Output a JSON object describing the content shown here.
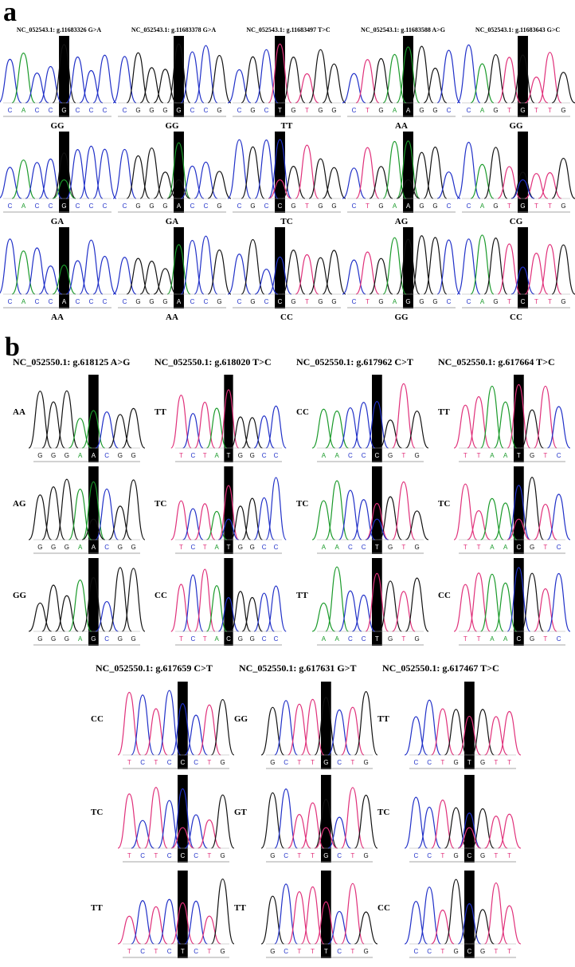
{
  "panels": [
    {
      "label": "a",
      "columns": [
        {
          "title": "NC_052543.1: g.11683326 G>A",
          "rows": [
            {
              "genotype": "GG",
              "before": [
                "C",
                "A",
                "C",
                "C"
              ],
              "site": "G",
              "after": [
                "C",
                "C",
                "C"
              ]
            },
            {
              "genotype": "GA",
              "before": [
                "C",
                "A",
                "C",
                "C"
              ],
              "site": "G",
              "after": [
                "C",
                "C",
                "C"
              ]
            },
            {
              "genotype": "AA",
              "before": [
                "C",
                "A",
                "C",
                "C"
              ],
              "site": "A",
              "after": [
                "C",
                "C",
                "C"
              ]
            }
          ]
        },
        {
          "title": "NC_052543.1: g.11683378 G>A",
          "rows": [
            {
              "genotype": "GG",
              "before": [
                "C",
                "G",
                "G",
                "G"
              ],
              "site": "G",
              "after": [
                "C",
                "C",
                "G"
              ]
            },
            {
              "genotype": "GA",
              "before": [
                "C",
                "G",
                "G",
                "G"
              ],
              "site": "A",
              "after": [
                "C",
                "C",
                "G"
              ]
            },
            {
              "genotype": "AA",
              "before": [
                "C",
                "G",
                "G",
                "G"
              ],
              "site": "A",
              "after": [
                "C",
                "C",
                "G"
              ]
            }
          ]
        },
        {
          "title": "NC_052543.1: g.11683497 T>C",
          "rows": [
            {
              "genotype": "TT",
              "before": [
                "C",
                "G",
                "C"
              ],
              "site": "T",
              "after": [
                "G",
                "T",
                "G",
                "G"
              ]
            },
            {
              "genotype": "TC",
              "before": [
                "C",
                "G",
                "C"
              ],
              "site": "C",
              "after": [
                "G",
                "T",
                "G",
                "G"
              ]
            },
            {
              "genotype": "CC",
              "before": [
                "C",
                "G",
                "C"
              ],
              "site": "C",
              "after": [
                "G",
                "T",
                "G",
                "G"
              ]
            }
          ]
        },
        {
          "title": "NC_052543.1: g.11683588 A>G",
          "rows": [
            {
              "genotype": "AA",
              "before": [
                "C",
                "T",
                "G",
                "A"
              ],
              "site": "A",
              "after": [
                "G",
                "G",
                "C"
              ]
            },
            {
              "genotype": "AG",
              "before": [
                "C",
                "T",
                "G",
                "A"
              ],
              "site": "A",
              "after": [
                "G",
                "G",
                "C"
              ]
            },
            {
              "genotype": "GG",
              "before": [
                "C",
                "T",
                "G",
                "A"
              ],
              "site": "G",
              "after": [
                "G",
                "G",
                "C"
              ]
            }
          ]
        },
        {
          "title": "NC_052543.1: g.11683643 G>C",
          "rows": [
            {
              "genotype": "GG",
              "before": [
                "C",
                "A",
                "G",
                "T"
              ],
              "site": "G",
              "after": [
                "T",
                "T",
                "G"
              ]
            },
            {
              "genotype": "CG",
              "before": [
                "C",
                "A",
                "G",
                "T"
              ],
              "site": "G",
              "after": [
                "T",
                "T",
                "G"
              ]
            },
            {
              "genotype": "CC",
              "before": [
                "C",
                "A",
                "G",
                "T"
              ],
              "site": "C",
              "after": [
                "T",
                "T",
                "G"
              ]
            }
          ]
        }
      ]
    },
    {
      "label": "b",
      "columns": [
        {
          "title": "NC_052550.1: g.618125 A>G",
          "rows": [
            {
              "genotype": "AA",
              "before": [
                "G",
                "G",
                "G",
                "A"
              ],
              "site": "A",
              "after": [
                "C",
                "G",
                "G"
              ]
            },
            {
              "genotype": "AG",
              "before": [
                "G",
                "G",
                "G",
                "A"
              ],
              "site": "A",
              "after": [
                "C",
                "G",
                "G"
              ]
            },
            {
              "genotype": "GG",
              "before": [
                "G",
                "G",
                "G",
                "A"
              ],
              "site": "G",
              "after": [
                "C",
                "G",
                "G"
              ]
            }
          ]
        },
        {
          "title": "NC_052550.1: g.618020 T>C",
          "rows": [
            {
              "genotype": "TT",
              "before": [
                "T",
                "C",
                "T",
                "A"
              ],
              "site": "T",
              "after": [
                "G",
                "G",
                "C",
                "C"
              ]
            },
            {
              "genotype": "TC",
              "before": [
                "T",
                "C",
                "T",
                "A"
              ],
              "site": "T",
              "after": [
                "G",
                "G",
                "C",
                "C"
              ]
            },
            {
              "genotype": "CC",
              "before": [
                "T",
                "C",
                "T",
                "A"
              ],
              "site": "C",
              "after": [
                "G",
                "G",
                "C",
                "C"
              ]
            }
          ]
        },
        {
          "title": "NC_052550.1: g.617962 C>T",
          "rows": [
            {
              "genotype": "CC",
              "before": [
                "A",
                "A",
                "C",
                "C"
              ],
              "site": "C",
              "after": [
                "G",
                "T",
                "G"
              ]
            },
            {
              "genotype": "TC",
              "before": [
                "A",
                "A",
                "C",
                "C"
              ],
              "site": "T",
              "after": [
                "G",
                "T",
                "G"
              ]
            },
            {
              "genotype": "TT",
              "before": [
                "A",
                "A",
                "C",
                "C"
              ],
              "site": "T",
              "after": [
                "G",
                "T",
                "G"
              ]
            }
          ]
        },
        {
          "title": "NC_052550.1: g.617664 T>C",
          "rows": [
            {
              "genotype": "TT",
              "before": [
                "T",
                "T",
                "A",
                "A"
              ],
              "site": "T",
              "after": [
                "G",
                "T",
                "C"
              ]
            },
            {
              "genotype": "TC",
              "before": [
                "T",
                "T",
                "A",
                "A"
              ],
              "site": "C",
              "after": [
                "G",
                "T",
                "C"
              ]
            },
            {
              "genotype": "CC",
              "before": [
                "T",
                "T",
                "A",
                "A"
              ],
              "site": "C",
              "after": [
                "G",
                "T",
                "C"
              ]
            }
          ]
        },
        {
          "title": "NC_052550.1: g.617659 C>T",
          "rows": [
            {
              "genotype": "CC",
              "before": [
                "T",
                "C",
                "T",
                "C"
              ],
              "site": "C",
              "after": [
                "C",
                "T",
                "G"
              ]
            },
            {
              "genotype": "TC",
              "before": [
                "T",
                "C",
                "T",
                "C"
              ],
              "site": "C",
              "after": [
                "C",
                "T",
                "G"
              ]
            },
            {
              "genotype": "TT",
              "before": [
                "T",
                "C",
                "T",
                "C"
              ],
              "site": "T",
              "after": [
                "C",
                "T",
                "G"
              ]
            }
          ]
        },
        {
          "title": "NC_052550.1: g.617631 G>T",
          "rows": [
            {
              "genotype": "GG",
              "before": [
                "G",
                "C",
                "T",
                "T"
              ],
              "site": "G",
              "after": [
                "C",
                "T",
                "G"
              ]
            },
            {
              "genotype": "GT",
              "before": [
                "G",
                "C",
                "T",
                "T"
              ],
              "site": "G",
              "after": [
                "C",
                "T",
                "G"
              ]
            },
            {
              "genotype": "TT",
              "before": [
                "G",
                "C",
                "T",
                "T"
              ],
              "site": "T",
              "after": [
                "C",
                "T",
                "G"
              ]
            }
          ]
        },
        {
          "title": "NC_052550.1: g.617467 T>C",
          "rows": [
            {
              "genotype": "TT",
              "before": [
                "C",
                "C",
                "T",
                "G"
              ],
              "site": "T",
              "after": [
                "G",
                "T",
                "T"
              ]
            },
            {
              "genotype": "TC",
              "before": [
                "C",
                "C",
                "T",
                "G"
              ],
              "site": "C",
              "after": [
                "G",
                "T",
                "T"
              ]
            },
            {
              "genotype": "CC",
              "before": [
                "C",
                "C",
                "T",
                "G"
              ],
              "site": "C",
              "after": [
                "G",
                "T",
                "T"
              ]
            }
          ]
        }
      ]
    }
  ]
}
